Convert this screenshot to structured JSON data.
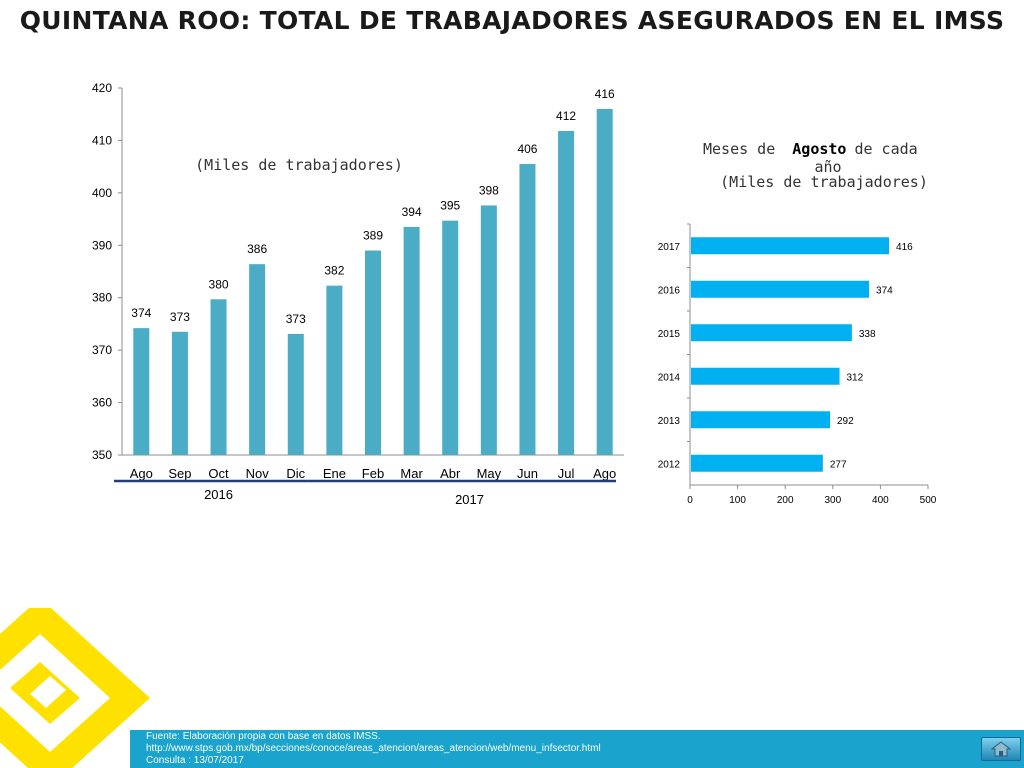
{
  "title": "QUINTANA ROO: TOTAL DE TRABAJADORES ASEGURADOS EN EL IMSS",
  "footer": {
    "line1": "Fuente: Elaboración propia con base en  datos IMSS.",
    "line2": " http://www.stps.gob.mx/bp/secciones/conoce/areas_atencion/areas_atencion/web/menu_infsector.html",
    "line3": "Consulta : 13/07/2017"
  },
  "icons": {
    "home": "home-icon",
    "logo": "yellow-logo-icon"
  },
  "colors": {
    "bar": "#4bacc6",
    "hbar": "#00b0f0",
    "footer": "#1aa3cc",
    "bracket": "#1f3f7a",
    "logo": "#ffe100"
  },
  "chart_data": [
    {
      "type": "bar",
      "note_label": "(Miles de trabajadores)",
      "categories": [
        "Ago",
        "Sep",
        "Oct",
        "Nov",
        "Dic",
        "Ene",
        "Feb",
        "Mar",
        "Abr",
        "May",
        "Jun",
        "Jul",
        "Ago"
      ],
      "values": [
        374.2,
        373.5,
        379.7,
        386.4,
        373.1,
        382.3,
        389.0,
        393.5,
        394.7,
        397.6,
        405.5,
        411.8,
        416.0
      ],
      "labels": [
        "374",
        "373",
        "380",
        "386",
        "373",
        "382",
        "389",
        "394",
        "395",
        "398",
        "406",
        "412",
        "416"
      ],
      "ylim": [
        350,
        420
      ],
      "yticks": [
        350,
        360,
        370,
        380,
        390,
        400,
        410,
        420
      ],
      "groups": [
        {
          "label": "2016",
          "from": 0,
          "to": 4
        },
        {
          "label": "2017",
          "from": 5,
          "to": 12
        }
      ]
    },
    {
      "type": "bar",
      "orientation": "horizontal",
      "title_prefix": "Meses de",
      "title_bold": "Agosto",
      "title_suffix": "de cada",
      "title_line2": "año",
      "title_line3": "(Miles de trabajadores)",
      "categories": [
        "2017",
        "2016",
        "2015",
        "2014",
        "2013",
        "2012"
      ],
      "values": [
        416,
        374,
        338,
        312,
        292,
        277
      ],
      "xlim": [
        0,
        500
      ],
      "xticks": [
        0,
        100,
        200,
        300,
        400,
        500
      ]
    }
  ]
}
